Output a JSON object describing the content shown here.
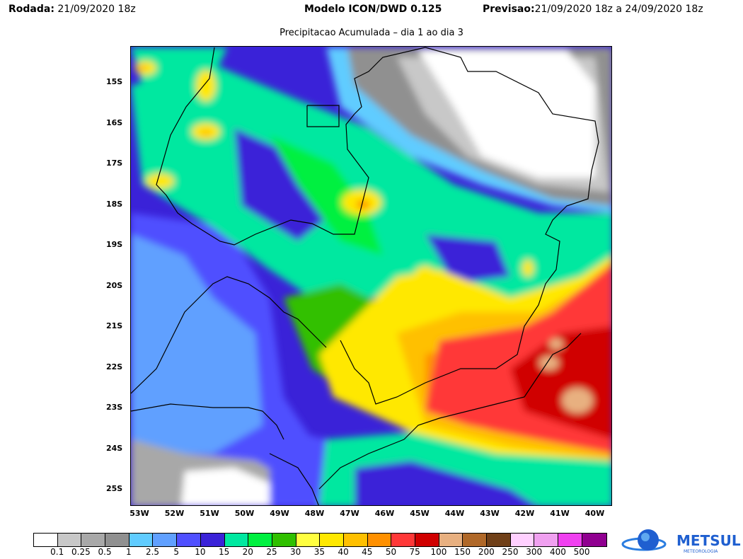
{
  "header": {
    "run_label": "Rodada:",
    "run_value": "21/09/2020 18z",
    "model": "Modelo ICON/DWD 0.125",
    "forecast_label": "Previsao:",
    "forecast_value": "21/09/2020 18z a 24/09/2020 18z"
  },
  "subtitle": "Precipitacao Acumulada – dia 1 ao dia 3",
  "lat_labels": [
    "15S",
    "16S",
    "17S",
    "18S",
    "19S",
    "20S",
    "21S",
    "22S",
    "23S",
    "24S",
    "25S"
  ],
  "lon_labels": [
    "53W",
    "52W",
    "51W",
    "50W",
    "49W",
    "48W",
    "47W",
    "46W",
    "45W",
    "44W",
    "43W",
    "42W",
    "41W",
    "40W"
  ],
  "legend": {
    "colors": [
      "#ffffff",
      "#c8c8c8",
      "#a8a8a8",
      "#909090",
      "#60ccff",
      "#60a0ff",
      "#5050ff",
      "#3a22d8",
      "#00e8a0",
      "#00f040",
      "#30c000",
      "#ffff40",
      "#ffe800",
      "#ffc000",
      "#ff9000",
      "#ff3838",
      "#d00000",
      "#e8b080",
      "#b06828",
      "#704018",
      "#ffd0ff",
      "#f0a0f0",
      "#f040f0",
      "#900090"
    ],
    "labels": [
      "0.1",
      "0.25",
      "0.5",
      "1",
      "2.5",
      "5",
      "10",
      "15",
      "20",
      "25",
      "30",
      "35",
      "40",
      "45",
      "50",
      "75",
      "100",
      "150",
      "200",
      "250",
      "300",
      "400",
      "500"
    ]
  },
  "logo": {
    "name": "METSUL",
    "tagline": "METEOROLOGIA"
  }
}
